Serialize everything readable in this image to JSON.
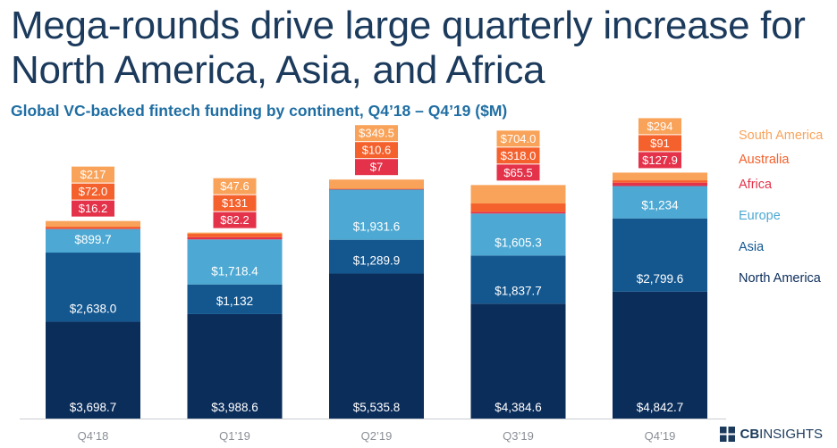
{
  "title": "Mega-rounds drive large quarterly increase for North America, Asia, and Africa",
  "subtitle": "Global VC-backed fintech funding by continent, Q4’18 – Q4’19 ($M)",
  "logo": {
    "brand": "CB",
    "suffix": "INSIGHTS"
  },
  "colors": {
    "north_america": "#0b2d5a",
    "asia": "#14578f",
    "europe": "#4da9d3",
    "africa": "#e4324a",
    "australia": "#f5612d",
    "south_america": "#f9a35a"
  },
  "chart_data": {
    "type": "bar",
    "stacked": true,
    "title": "Mega-rounds drive large quarterly increase for North America, Asia, and Africa",
    "subtitle": "Global VC-backed fintech funding by continent, Q4’18 – Q4’19 ($M)",
    "categories": [
      "Q4’18",
      "Q1’19",
      "Q2’19",
      "Q3’19",
      "Q4’19"
    ],
    "ylim": [
      0,
      9500
    ],
    "series": [
      {
        "name": "North America",
        "color": "#0b2d5a",
        "values": [
          3698.7,
          3988.6,
          5535.8,
          4384.6,
          4842.7
        ],
        "labels": [
          "$3,698.7",
          "$3,988.6",
          "$5,535.8",
          "$4,384.6",
          "$4,842.7"
        ]
      },
      {
        "name": "Asia",
        "color": "#14578f",
        "values": [
          2638.0,
          1132,
          1289.9,
          1837.7,
          2799.6
        ],
        "labels": [
          "$2,638.0",
          "$1,132",
          "$1,289.9",
          "$1,837.7",
          "$2,799.6"
        ]
      },
      {
        "name": "Europe",
        "color": "#4da9d3",
        "values": [
          899.7,
          1718.4,
          1931.6,
          1605.3,
          1234
        ],
        "labels": [
          "$899.7",
          "$1,718.4",
          "$1,931.6",
          "$1,605.3",
          "$1,234"
        ]
      },
      {
        "name": "Africa",
        "color": "#e4324a",
        "values": [
          16.2,
          82.2,
          7,
          65.5,
          127.9
        ],
        "labels": [
          "$16.2",
          "$82.2",
          "$7",
          "$65.5",
          "$127.9"
        ]
      },
      {
        "name": "Australia",
        "color": "#f5612d",
        "values": [
          72.0,
          131,
          10.6,
          318.0,
          91
        ],
        "labels": [
          "$72.0",
          "$131",
          "$10.6",
          "$318.0",
          "$91"
        ]
      },
      {
        "name": "South America",
        "color": "#f9a35a",
        "values": [
          217,
          47.6,
          349.5,
          704.0,
          294
        ],
        "labels": [
          "$217",
          "$47.6",
          "$349.5",
          "$704.0",
          "$294"
        ]
      }
    ],
    "legend": {
      "position": "right",
      "order": [
        "South America",
        "Australia",
        "Africa",
        "Europe",
        "Asia",
        "North America"
      ]
    }
  }
}
